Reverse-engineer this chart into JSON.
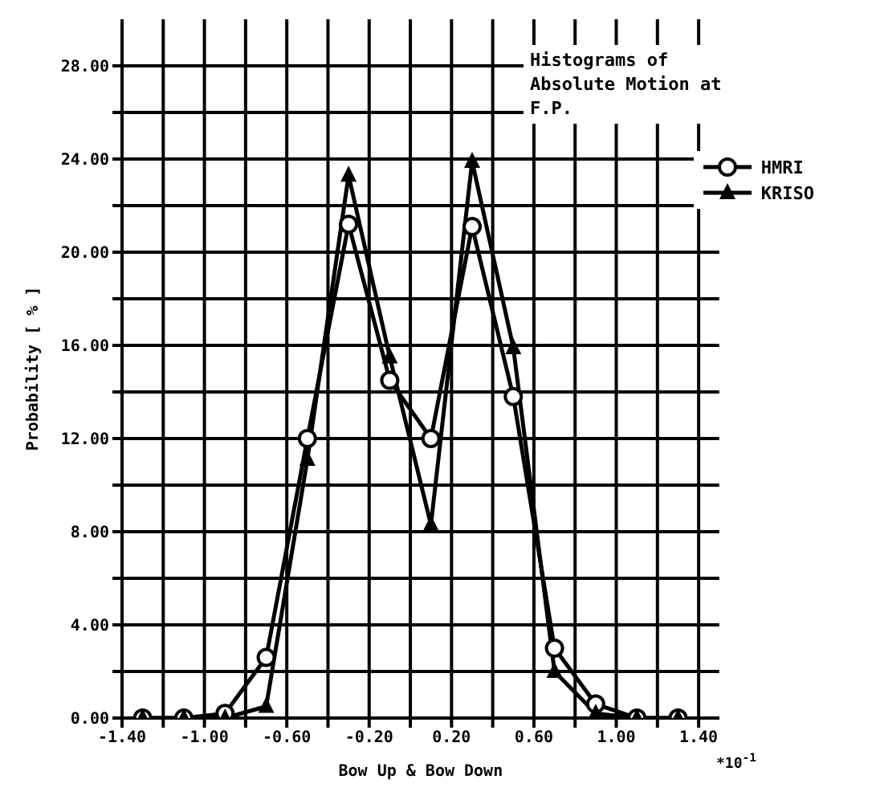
{
  "chart_data": {
    "type": "line",
    "title": "Histograms of Absolute Motion at F.P.",
    "xlabel": "Bow Up & Bow Down",
    "ylabel": "Probability [ % ]",
    "annotations": [
      "*10$^{-1}$"
    ],
    "x": [
      -1.3,
      -1.1,
      -0.9,
      -0.7,
      -0.5,
      -0.3,
      -0.1,
      0.1,
      0.3,
      0.5,
      0.7,
      0.9,
      1.1,
      1.3
    ],
    "series": [
      {
        "name": "HMRI",
        "color": "#000000",
        "marker": "circle",
        "values": [
          0,
          0,
          0.2,
          2.6,
          12.0,
          21.2,
          14.5,
          12.0,
          21.1,
          13.8,
          3.0,
          0.6,
          0,
          0
        ]
      },
      {
        "name": "KRISO",
        "color": "#000000",
        "marker": "triangle",
        "values": [
          0,
          0,
          0,
          0.5,
          11.1,
          23.3,
          15.5,
          8.3,
          23.9,
          15.9,
          2.0,
          0.2,
          0,
          0
        ]
      }
    ],
    "xlim": [
      -1.4,
      1.5
    ],
    "xticks": [
      {
        "value": -1.4,
        "label": "-1.40"
      },
      {
        "value": -1.2,
        "label": null
      },
      {
        "value": -1.0,
        "label": "-1.00"
      },
      {
        "value": -0.8,
        "label": null
      },
      {
        "value": -0.6,
        "label": "-0.60"
      },
      {
        "value": -0.4,
        "label": null
      },
      {
        "value": -0.2,
        "label": "-0.20"
      },
      {
        "value": 0,
        "label": null
      },
      {
        "value": 0.2,
        "label": "0.20"
      },
      {
        "value": 0.4,
        "label": null
      },
      {
        "value": 0.6,
        "label": "0.60"
      },
      {
        "value": 0.8,
        "label": null
      },
      {
        "value": 1.0,
        "label": "1.00"
      },
      {
        "value": 1.2,
        "label": null
      },
      {
        "value": 1.4,
        "label": "1.40"
      }
    ],
    "ylim": [
      0,
      30
    ],
    "yticks": [
      {
        "value": 0,
        "label": "0.00"
      },
      {
        "value": 2,
        "label": null
      },
      {
        "value": 4,
        "label": "4.00"
      },
      {
        "value": 6,
        "label": null
      },
      {
        "value": 8,
        "label": "8.00"
      },
      {
        "value": 10,
        "label": null
      },
      {
        "value": 12,
        "label": "12.00"
      },
      {
        "value": 14,
        "label": null
      },
      {
        "value": 16,
        "label": "16.00"
      },
      {
        "value": 18,
        "label": null
      },
      {
        "value": 20,
        "label": "20.00"
      },
      {
        "value": 22,
        "label": null
      },
      {
        "value": 24,
        "label": "24.00"
      },
      {
        "value": 26,
        "label": null
      },
      {
        "value": 28,
        "label": "28.00"
      }
    ],
    "grid": true,
    "legend": "top right",
    "line_style": "solid"
  }
}
